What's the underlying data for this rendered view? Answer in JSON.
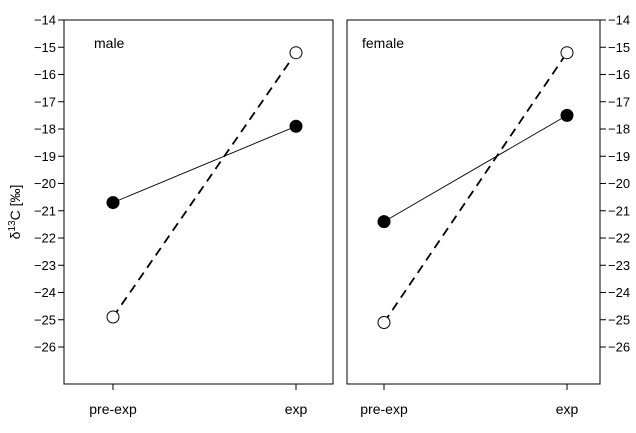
{
  "chart_data": [
    {
      "type": "line",
      "title": "male",
      "ylabel_prefix": "δ",
      "ylabel_sup": "13",
      "ylabel_suffix": "C [‰]",
      "categories": [
        "pre-exp",
        "exp"
      ],
      "ylim": [
        -26,
        -14
      ],
      "yticks": [
        "−14",
        "−15",
        "−16",
        "−17",
        "−18",
        "−19",
        "−20",
        "−21",
        "−22",
        "−23",
        "−24",
        "−25",
        "−26"
      ],
      "series": [
        {
          "style": "solid",
          "marker": "filled",
          "values": [
            -20.7,
            -17.9
          ]
        },
        {
          "style": "dashed",
          "marker": "open",
          "values": [
            -24.9,
            -15.2
          ]
        }
      ]
    },
    {
      "type": "line",
      "title": "female",
      "categories": [
        "pre-exp",
        "exp"
      ],
      "ylim": [
        -26,
        -14
      ],
      "yticks": [
        "−14",
        "−15",
        "−16",
        "−17",
        "−18",
        "−19",
        "−20",
        "−21",
        "−22",
        "−23",
        "−24",
        "−25",
        "−26"
      ],
      "series": [
        {
          "style": "solid",
          "marker": "filled",
          "values": [
            -21.4,
            -17.5
          ]
        },
        {
          "style": "dashed",
          "marker": "open",
          "values": [
            -25.1,
            -15.2
          ]
        }
      ]
    }
  ],
  "colors": {
    "line": "#000000",
    "filled_marker": "#000000",
    "open_marker": "#ffffff",
    "background": "#ffffff"
  }
}
